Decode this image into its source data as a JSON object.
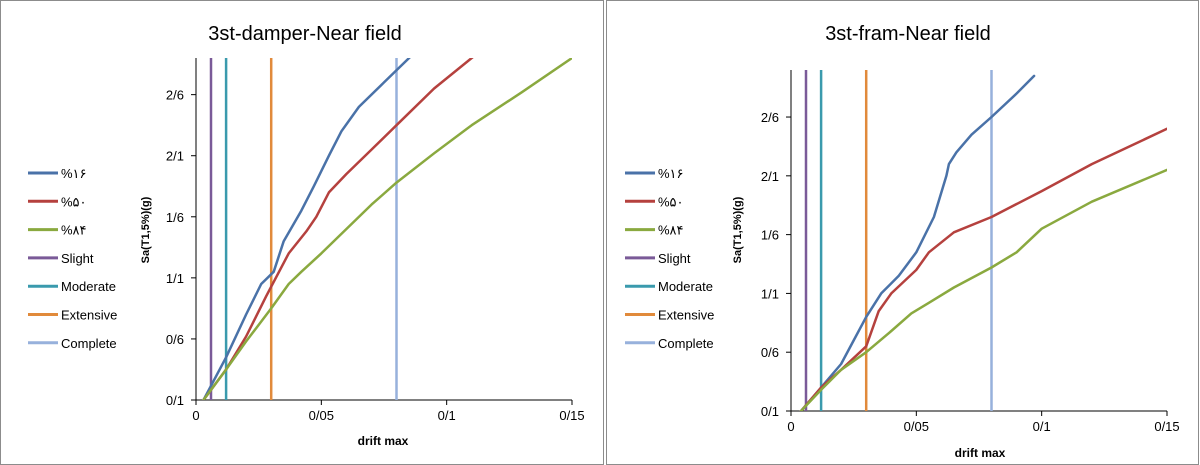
{
  "chart_data": [
    {
      "type": "line",
      "title": "3st-damper-Near field",
      "xlabel": "drift max",
      "ylabel": "Sa(T1,5%)(g)",
      "xlim": [
        0,
        0.15
      ],
      "ylim": [
        0.1,
        2.9
      ],
      "x_ticks": [
        "0",
        "0/05",
        "0/1",
        "0/15"
      ],
      "y_ticks": [
        "0/1",
        "0/6",
        "1/1",
        "1/6",
        "2/1",
        "2/6"
      ],
      "grid": false,
      "legend_position": "left",
      "series": [
        {
          "name": "%۱۶",
          "color": "#4a72a8",
          "x": [
            0.003,
            0.012,
            0.02,
            0.026,
            0.031,
            0.035,
            0.042,
            0.047,
            0.053,
            0.058,
            0.065,
            0.075,
            0.085,
            0.09
          ],
          "y": [
            0.1,
            0.45,
            0.8,
            1.05,
            1.15,
            1.4,
            1.65,
            1.85,
            2.1,
            2.3,
            2.5,
            2.7,
            2.9,
            3.0
          ]
        },
        {
          "name": "%۵۰",
          "color": "#b5413e",
          "x": [
            0.003,
            0.012,
            0.02,
            0.028,
            0.037,
            0.044,
            0.048,
            0.053,
            0.06,
            0.07,
            0.08,
            0.095,
            0.11,
            0.125
          ],
          "y": [
            0.1,
            0.35,
            0.62,
            0.95,
            1.3,
            1.48,
            1.6,
            1.8,
            1.95,
            2.15,
            2.35,
            2.65,
            2.9,
            3.15
          ]
        },
        {
          "name": "%۸۴",
          "color": "#8aa93f",
          "x": [
            0.003,
            0.012,
            0.02,
            0.03,
            0.037,
            0.042,
            0.05,
            0.06,
            0.07,
            0.08,
            0.095,
            0.11,
            0.13,
            0.15
          ],
          "y": [
            0.1,
            0.35,
            0.58,
            0.85,
            1.05,
            1.15,
            1.3,
            1.5,
            1.7,
            1.88,
            2.12,
            2.35,
            2.62,
            2.9
          ]
        },
        {
          "name": "Slight",
          "color": "#7a5a98",
          "x": [
            0.006,
            0.006
          ],
          "y": [
            0.1,
            2.9
          ]
        },
        {
          "name": "Moderate",
          "color": "#3a9aad",
          "x": [
            0.012,
            0.012
          ],
          "y": [
            0.1,
            2.9
          ]
        },
        {
          "name": "Extensive",
          "color": "#e18a3b",
          "x": [
            0.03,
            0.03
          ],
          "y": [
            0.1,
            2.9
          ]
        },
        {
          "name": "Complete",
          "color": "#97b1dc",
          "x": [
            0.08,
            0.08
          ],
          "y": [
            0.1,
            2.9
          ]
        }
      ]
    },
    {
      "type": "line",
      "title": "3st-fram-Near field",
      "xlabel": "drift max",
      "ylabel": "Sa(T1,5%)(g)",
      "xlim": [
        0,
        0.15
      ],
      "ylim": [
        0.1,
        3.0
      ],
      "x_ticks": [
        "0",
        "0/05",
        "0/1",
        "0/15"
      ],
      "y_ticks": [
        "0/1",
        "0/6",
        "1/1",
        "1/6",
        "2/1",
        "2/6"
      ],
      "grid": false,
      "legend_position": "left",
      "series": [
        {
          "name": "%۱۶",
          "color": "#4a72a8",
          "x": [
            0.004,
            0.012,
            0.02,
            0.025,
            0.03,
            0.036,
            0.043,
            0.05,
            0.057,
            0.062,
            0.063,
            0.066,
            0.072,
            0.08,
            0.09,
            0.097
          ],
          "y": [
            0.1,
            0.3,
            0.5,
            0.7,
            0.9,
            1.1,
            1.25,
            1.45,
            1.75,
            2.1,
            2.2,
            2.3,
            2.45,
            2.6,
            2.8,
            2.95
          ]
        },
        {
          "name": "%۵۰",
          "color": "#b5413e",
          "x": [
            0.004,
            0.012,
            0.02,
            0.03,
            0.035,
            0.04,
            0.05,
            0.055,
            0.065,
            0.08,
            0.1,
            0.12,
            0.15
          ],
          "y": [
            0.1,
            0.3,
            0.45,
            0.65,
            0.95,
            1.1,
            1.3,
            1.45,
            1.62,
            1.75,
            1.97,
            2.2,
            2.5
          ]
        },
        {
          "name": "%۸۴",
          "color": "#8aa93f",
          "x": [
            0.004,
            0.012,
            0.02,
            0.03,
            0.04,
            0.048,
            0.055,
            0.065,
            0.08,
            0.09,
            0.1,
            0.12,
            0.15
          ],
          "y": [
            0.1,
            0.28,
            0.45,
            0.6,
            0.78,
            0.93,
            1.02,
            1.15,
            1.32,
            1.45,
            1.65,
            1.88,
            2.15
          ]
        },
        {
          "name": "Slight",
          "color": "#7a5a98",
          "x": [
            0.006,
            0.006
          ],
          "y": [
            0.1,
            3.0
          ]
        },
        {
          "name": "Moderate",
          "color": "#3a9aad",
          "x": [
            0.012,
            0.012
          ],
          "y": [
            0.1,
            3.0
          ]
        },
        {
          "name": "Extensive",
          "color": "#e18a3b",
          "x": [
            0.03,
            0.03
          ],
          "y": [
            0.1,
            3.0
          ]
        },
        {
          "name": "Complete",
          "color": "#97b1dc",
          "x": [
            0.08,
            0.08
          ],
          "y": [
            0.1,
            3.0
          ]
        }
      ]
    }
  ]
}
